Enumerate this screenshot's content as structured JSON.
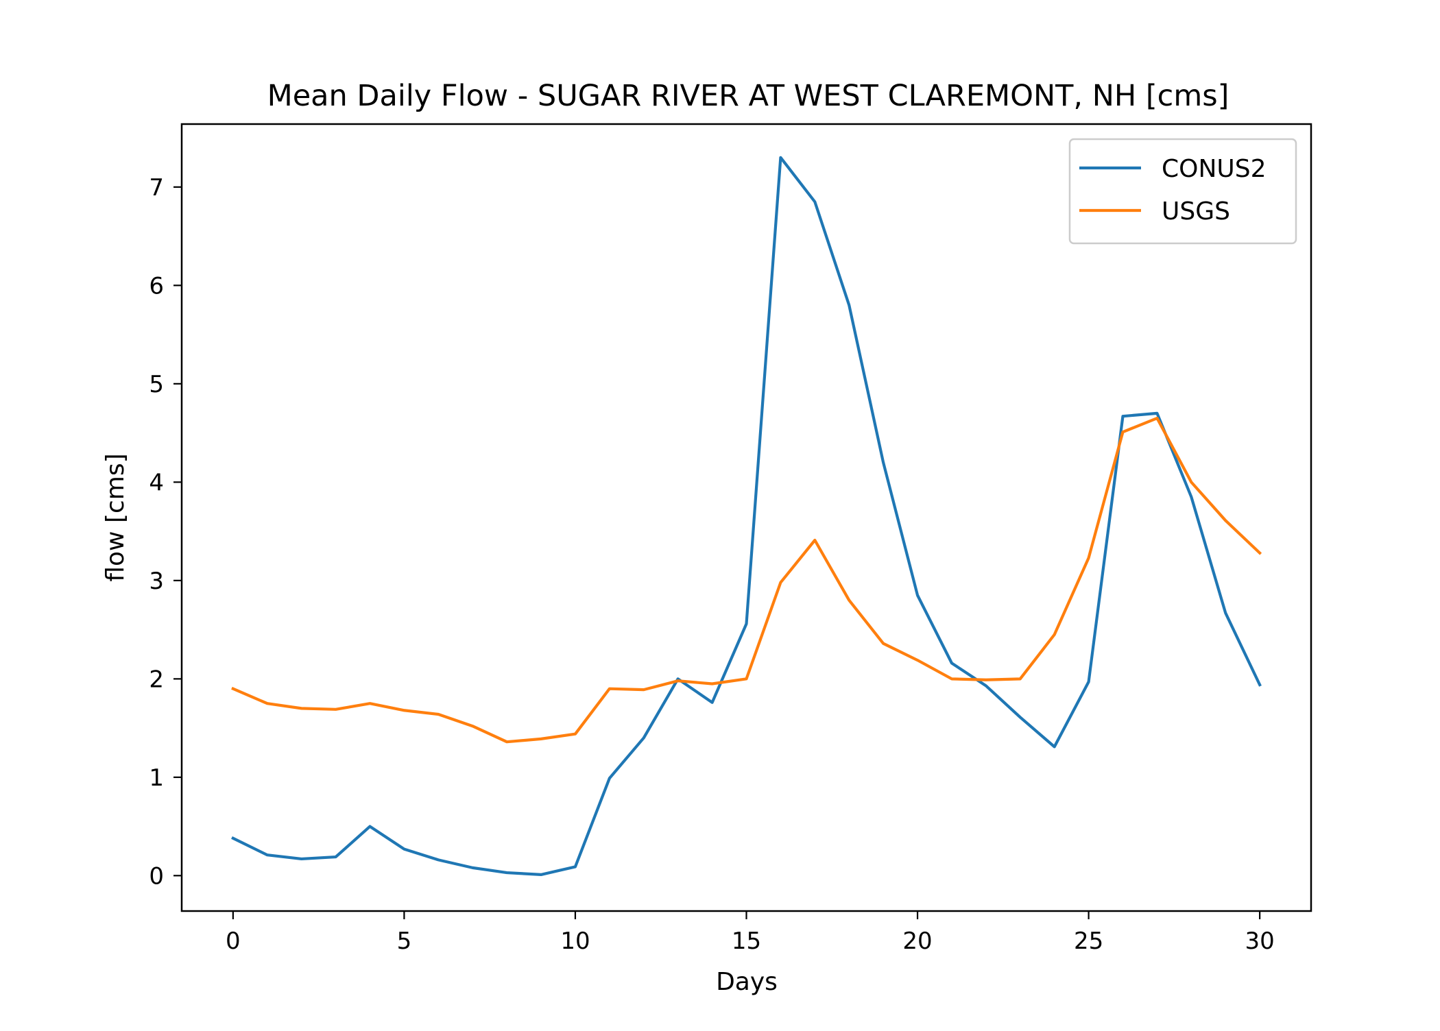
{
  "chart_data": {
    "type": "line",
    "title": "Mean Daily Flow - SUGAR RIVER AT WEST CLAREMONT, NH [cms]",
    "xlabel": "Days",
    "ylabel": "flow [cms]",
    "xlim": [
      -1.5,
      31.5
    ],
    "ylim": [
      -0.36,
      7.64
    ],
    "xticks": [
      0,
      5,
      10,
      15,
      20,
      25,
      30
    ],
    "xtick_labels": [
      "0",
      "5",
      "10",
      "15",
      "20",
      "25",
      "30"
    ],
    "yticks": [
      0,
      1,
      2,
      3,
      4,
      5,
      6,
      7
    ],
    "ytick_labels": [
      "0",
      "1",
      "2",
      "3",
      "4",
      "5",
      "6",
      "7"
    ],
    "grid": false,
    "legend_position": "top-right",
    "x": [
      0,
      1,
      2,
      3,
      4,
      5,
      6,
      7,
      8,
      9,
      10,
      11,
      12,
      13,
      14,
      15,
      16,
      17,
      18,
      19,
      20,
      21,
      22,
      23,
      24,
      25,
      26,
      27,
      28,
      29,
      30
    ],
    "series": [
      {
        "name": "CONUS2",
        "color": "#1f77b4",
        "values": [
          0.38,
          0.21,
          0.17,
          0.19,
          0.5,
          0.27,
          0.16,
          0.08,
          0.03,
          0.01,
          0.09,
          0.99,
          1.4,
          2.0,
          1.76,
          2.56,
          7.3,
          6.85,
          5.8,
          4.2,
          2.85,
          2.16,
          1.93,
          1.61,
          1.31,
          1.97,
          4.67,
          4.7,
          3.85,
          2.67,
          1.94
        ]
      },
      {
        "name": "USGS",
        "color": "#ff7f0e",
        "values": [
          1.9,
          1.75,
          1.7,
          1.69,
          1.75,
          1.68,
          1.64,
          1.52,
          1.36,
          1.39,
          1.44,
          1.9,
          1.89,
          1.98,
          1.95,
          2.0,
          2.98,
          3.41,
          2.8,
          2.36,
          2.19,
          2.0,
          1.99,
          2.0,
          2.45,
          3.23,
          4.51,
          4.65,
          4.0,
          3.61,
          3.28
        ]
      }
    ]
  }
}
